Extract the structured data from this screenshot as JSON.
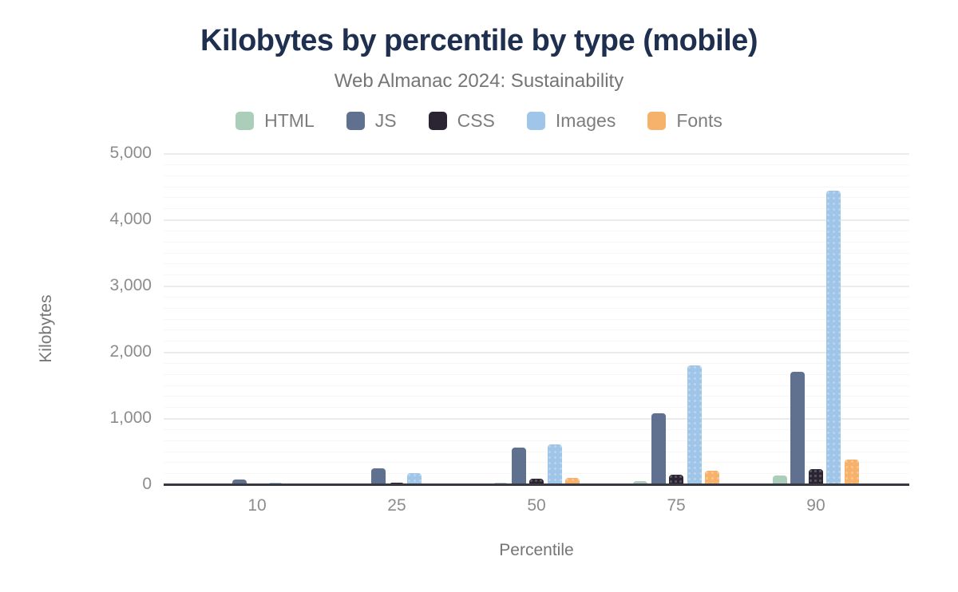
{
  "header": {
    "title": "Kilobytes by percentile by type (mobile)",
    "subtitle": "Web Almanac 2024: Sustainability"
  },
  "colors": {
    "title": "#1e2f4f",
    "subtitle": "#757575",
    "tick_label": "#8c8c8c",
    "axis_line": "#383842",
    "gridline_major": "#ebebeb",
    "gridline_minor": "#f6f6f6",
    "background": "#ffffff"
  },
  "chart_data": {
    "type": "bar",
    "title": "Kilobytes by percentile by type (mobile)",
    "subtitle": "Web Almanac 2024: Sustainability",
    "categories": [
      "10",
      "25",
      "50",
      "75",
      "90"
    ],
    "series": [
      {
        "name": "HTML",
        "color": "#abceba",
        "pattern": "solid",
        "values": [
          12,
          20,
          35,
          60,
          145
        ]
      },
      {
        "name": "JS",
        "color": "#60708f",
        "pattern": "solid",
        "values": [
          85,
          250,
          565,
          1085,
          1715
        ]
      },
      {
        "name": "CSS",
        "color": "#2b2433",
        "pattern": "dots",
        "values": [
          10,
          38,
          95,
          155,
          245
        ]
      },
      {
        "name": "Images",
        "color": "#9fc5e8",
        "pattern": "dots-subtle",
        "values": [
          42,
          175,
          610,
          1810,
          4440
        ]
      },
      {
        "name": "Fonts",
        "color": "#f6b26b",
        "pattern": "dots-subtle",
        "values": [
          2,
          30,
          105,
          220,
          390
        ]
      }
    ],
    "xlabel": "Percentile",
    "ylabel": "Kilobytes",
    "ylim": [
      0,
      5000
    ],
    "ytick_interval": 1000,
    "minor_gridlines_per_major": 6,
    "yticks": [
      "0",
      "1,000",
      "2,000",
      "3,000",
      "4,000",
      "5,000"
    ],
    "grid": true,
    "legend_position": "top"
  }
}
